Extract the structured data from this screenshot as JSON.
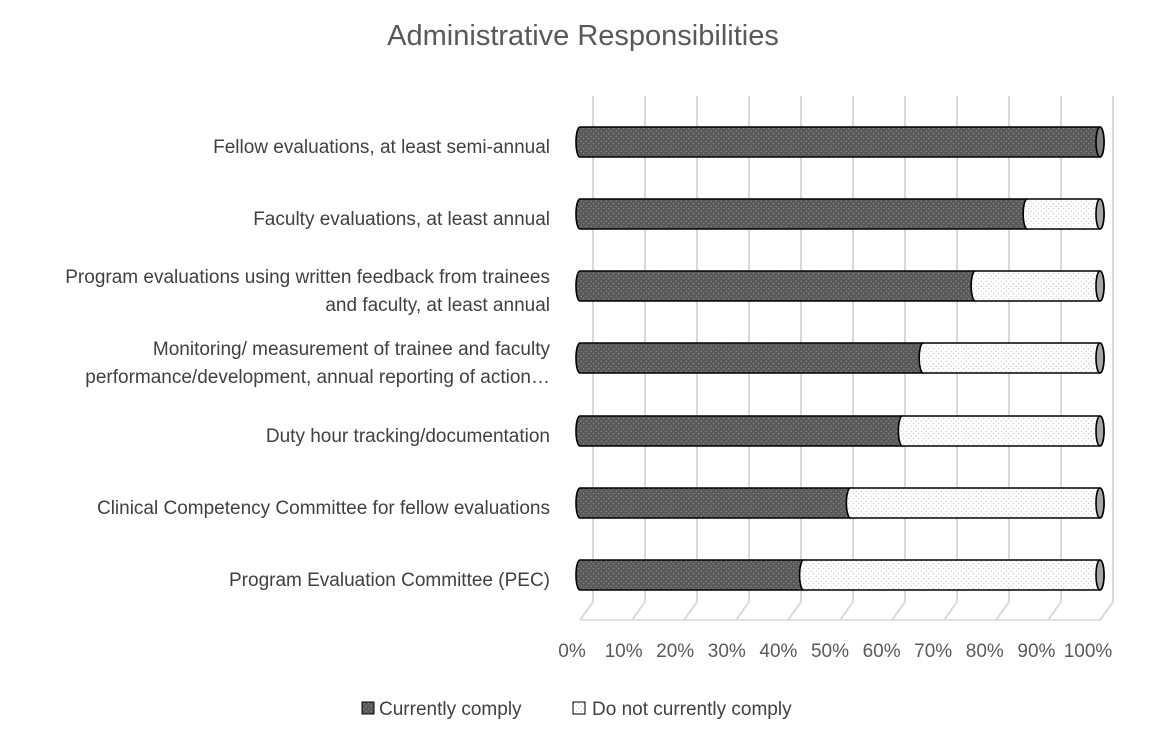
{
  "chart_data": {
    "type": "bar",
    "orientation": "horizontal",
    "stacked": true,
    "title": "Administrative Responsibilities",
    "categories": [
      [
        "Fellow evaluations, at least semi-annual"
      ],
      [
        "Faculty evaluations, at least annual"
      ],
      [
        "Program evaluations using written feedback from trainees",
        "and faculty, at least annual"
      ],
      [
        "Monitoring/ measurement of trainee and faculty",
        "performance/development, annual reporting of action…"
      ],
      [
        "Duty hour tracking/documentation"
      ],
      [
        "Clinical Competency Committee for fellow evaluations"
      ],
      [
        "Program Evaluation Committee (PEC)"
      ]
    ],
    "series": [
      {
        "name": "Currently comply",
        "values": [
          100,
          86,
          76,
          66,
          62,
          52,
          43
        ],
        "color": "#595959"
      },
      {
        "name": "Do not currently comply",
        "values": [
          0,
          14,
          24,
          34,
          38,
          48,
          57
        ],
        "color": "#ffffff"
      }
    ],
    "xlim": [
      0,
      100
    ],
    "xticks": [
      "0%",
      "10%",
      "20%",
      "30%",
      "40%",
      "50%",
      "60%",
      "70%",
      "80%",
      "90%",
      "100%"
    ],
    "grid": true,
    "legend": "bottom"
  }
}
